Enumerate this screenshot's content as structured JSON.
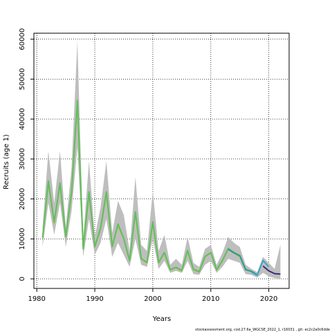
{
  "chart_data": {
    "type": "line",
    "title": "",
    "xlabel": "Years",
    "ylabel": "Recruits (age 1)",
    "xlim": [
      1979.5,
      2023.5
    ],
    "ylim": [
      -2400,
      61500
    ],
    "x_ticks": [
      1980,
      1990,
      2000,
      2010,
      2020
    ],
    "y_ticks": [
      0,
      10000,
      20000,
      30000,
      40000,
      50000,
      60000
    ],
    "grid": true,
    "legend": "none",
    "band_color": "#bebebe",
    "band": {
      "x": [
        1981,
        1982,
        1983,
        1984,
        1985,
        1986,
        1987,
        1988,
        1989,
        1990,
        1991,
        1992,
        1993,
        1994,
        1995,
        1996,
        1997,
        1998,
        1999,
        2000,
        2001,
        2002,
        2003,
        2004,
        2005,
        2006,
        2007,
        2008,
        2009,
        2010,
        2011,
        2012,
        2013,
        2014,
        2015,
        2016,
        2017,
        2018,
        2019,
        2020,
        2021,
        2022
      ],
      "lower": [
        8000,
        19000,
        11000,
        19000,
        8000,
        17000,
        33000,
        5500,
        15000,
        6000,
        9000,
        15000,
        5500,
        9000,
        6000,
        3000,
        10000,
        3500,
        3000,
        10000,
        2500,
        4500,
        1500,
        2000,
        1500,
        4500,
        1200,
        1000,
        3500,
        4500,
        1500,
        3000,
        5000,
        4500,
        4000,
        1200,
        1000,
        300,
        1500,
        600,
        200,
        0
      ],
      "upper": [
        13000,
        32000,
        19000,
        32000,
        13000,
        28000,
        59500,
        10000,
        29500,
        10500,
        18000,
        29500,
        11500,
        19500,
        16000,
        7000,
        25500,
        8500,
        7000,
        22000,
        7000,
        11000,
        3500,
        5000,
        3500,
        10500,
        4000,
        3000,
        7500,
        8500,
        3500,
        6500,
        10500,
        9000,
        8000,
        3500,
        2500,
        1700,
        5500,
        4000,
        2500,
        8500
      ]
    },
    "series": [
      {
        "color": "#b5bd2c",
        "x": [
          1981,
          1982,
          1983,
          1984,
          1985,
          1986,
          1987,
          1988,
          1989,
          1990,
          1991,
          1992,
          1993,
          1994,
          1995,
          1996,
          1997,
          1998,
          1999,
          2000,
          2001,
          2002,
          2003,
          2004,
          2005,
          2006,
          2007,
          2008,
          2009,
          2010,
          2011,
          2012,
          2013,
          2014,
          2015
        ],
        "values": [
          10200,
          24200,
          14000,
          23800,
          10500,
          21500,
          44200,
          7500,
          21500,
          8000,
          12500,
          21500,
          8000,
          13500,
          10000,
          4500,
          16500,
          5000,
          4000,
          14000,
          4000,
          6500,
          2200,
          2800,
          2000,
          7000,
          2300,
          1700,
          5500,
          6500,
          2200,
          4500,
          7500,
          6500,
          5500
        ]
      },
      {
        "color": "#5fbf60",
        "x": [
          1981,
          1982,
          1983,
          1984,
          1985,
          1986,
          1987,
          1988,
          1989,
          1990,
          1991,
          1992,
          1993,
          1994,
          1995,
          1996,
          1997,
          1998,
          1999,
          2000,
          2001,
          2002,
          2003,
          2004,
          2005,
          2006,
          2007,
          2008,
          2009,
          2010,
          2011,
          2012,
          2013,
          2014,
          2015,
          2016,
          2017
        ],
        "values": [
          10300,
          24500,
          14200,
          24000,
          10600,
          21800,
          44700,
          7600,
          21800,
          8100,
          12700,
          21800,
          8100,
          13700,
          10100,
          4600,
          16800,
          5100,
          4100,
          14300,
          4100,
          6600,
          2300,
          2900,
          2100,
          7100,
          2400,
          1800,
          5600,
          6600,
          2300,
          4600,
          7600,
          6600,
          5800,
          2400,
          1800
        ]
      },
      {
        "color": "#2a9a8f",
        "x": [
          2013,
          2014,
          2015,
          2016,
          2017,
          2018
        ],
        "values": [
          7400,
          6500,
          5800,
          2300,
          1900,
          1000
        ]
      },
      {
        "color": "#36a6c4",
        "x": [
          2017,
          2018,
          2019,
          2020
        ],
        "values": [
          1700,
          900,
          4600,
          3000
        ]
      },
      {
        "color": "#3b2a7a",
        "x": [
          2019,
          2020,
          2021,
          2022
        ],
        "values": [
          3200,
          2000,
          1300,
          1200
        ]
      }
    ]
  },
  "footer_text": "stockassessment.org,  cod.27.6a_WGCSE_2022_1,  r16031 ,  git:  ec2c2a0c6dde"
}
